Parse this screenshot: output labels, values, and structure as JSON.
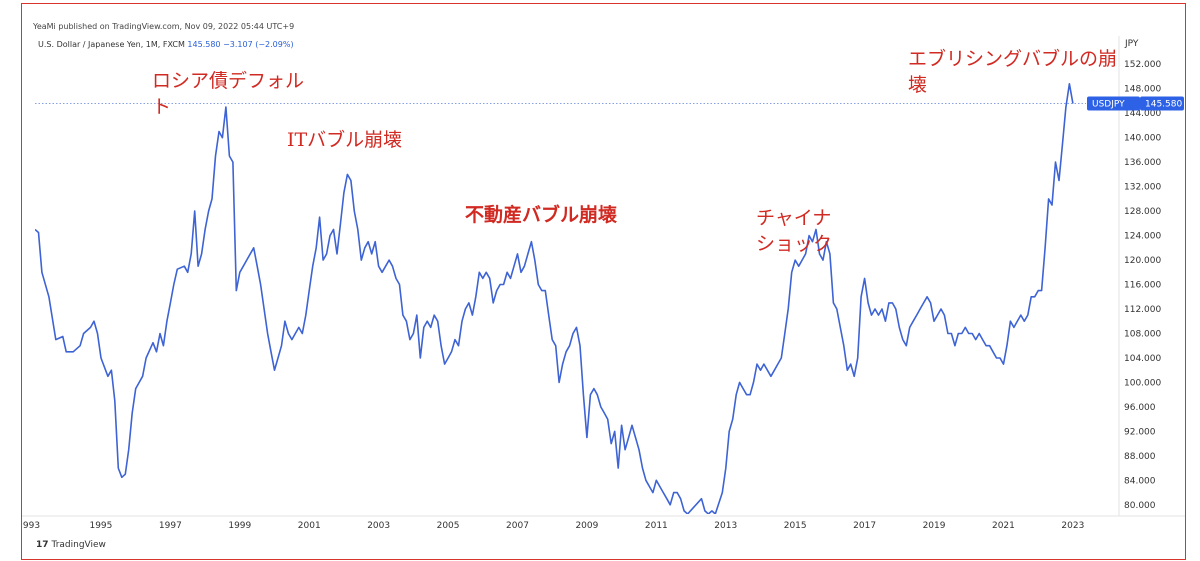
{
  "header": {
    "publisher": "YeaMi published on TradingView.com, Nov 09, 2022 05:44 UTC+9",
    "symbol_desc": "U.S. Dollar / Japanese Yen, 1M, FXCM",
    "last_price": "145.580",
    "change": "−3.107 (−2.09%)"
  },
  "footer": {
    "logo_mark": "17",
    "logo_text": "TradingView"
  },
  "annotations": {
    "russia_1": "ロシア債デフォル",
    "russia_2": "ト",
    "it_bubble": "ITバブル崩壊",
    "housing": "不動産バブル崩壊",
    "china_1": "チャイナ",
    "china_2": "ショック",
    "everything_1": "エブリシングバブルの崩",
    "everything_2": "壊"
  },
  "colors": {
    "line": "#3d63d4",
    "badge": "#2e62e6",
    "annotation": "#d02a22",
    "frame": "#d9342b"
  },
  "chart_data": {
    "type": "line",
    "currency_label": "JPY",
    "series_label": "USDJPY",
    "last_value": 145.58,
    "ylim": [
      78.5,
      154
    ],
    "y_ticks": [
      "152.000",
      "148.000",
      "144.000",
      "140.000",
      "136.000",
      "132.000",
      "128.000",
      "124.000",
      "120.000",
      "116.000",
      "112.000",
      "108.000",
      "104.000",
      "100.000",
      "96.000",
      "92.000",
      "88.000",
      "84.000",
      "80.000"
    ],
    "x_ticks": [
      "993",
      "1995",
      "1997",
      "1999",
      "2001",
      "2003",
      "2005",
      "2007",
      "2009",
      "2011",
      "2013",
      "2015",
      "2017",
      "2019",
      "2021",
      "2023"
    ],
    "xlim": [
      1993.1,
      2024.3
    ],
    "points": [
      [
        1993.1,
        125
      ],
      [
        1993.2,
        124.5
      ],
      [
        1993.3,
        118
      ],
      [
        1993.5,
        114
      ],
      [
        1993.7,
        107
      ],
      [
        1993.9,
        107.5
      ],
      [
        1994.0,
        105
      ],
      [
        1994.2,
        105
      ],
      [
        1994.4,
        106
      ],
      [
        1994.5,
        108
      ],
      [
        1994.7,
        109
      ],
      [
        1994.8,
        110
      ],
      [
        1994.9,
        108
      ],
      [
        1995.0,
        104
      ],
      [
        1995.2,
        101
      ],
      [
        1995.3,
        102
      ],
      [
        1995.4,
        97
      ],
      [
        1995.5,
        86
      ],
      [
        1995.6,
        84.5
      ],
      [
        1995.7,
        85
      ],
      [
        1995.8,
        89
      ],
      [
        1995.9,
        95
      ],
      [
        1996.0,
        99
      ],
      [
        1996.2,
        101
      ],
      [
        1996.3,
        104
      ],
      [
        1996.5,
        106.5
      ],
      [
        1996.6,
        105
      ],
      [
        1996.7,
        108
      ],
      [
        1996.8,
        106
      ],
      [
        1996.9,
        110
      ],
      [
        1997.0,
        113
      ],
      [
        1997.1,
        116
      ],
      [
        1997.2,
        118.5
      ],
      [
        1997.4,
        119
      ],
      [
        1997.5,
        118
      ],
      [
        1997.6,
        121
      ],
      [
        1997.7,
        128
      ],
      [
        1997.8,
        119
      ],
      [
        1997.9,
        121
      ],
      [
        1998.0,
        125
      ],
      [
        1998.1,
        128
      ],
      [
        1998.2,
        130
      ],
      [
        1998.3,
        137
      ],
      [
        1998.4,
        141
      ],
      [
        1998.5,
        140
      ],
      [
        1998.6,
        145
      ],
      [
        1998.7,
        137
      ],
      [
        1998.8,
        136
      ],
      [
        1998.9,
        115
      ],
      [
        1999.0,
        118
      ],
      [
        1999.1,
        119
      ],
      [
        1999.2,
        120
      ],
      [
        1999.4,
        122
      ],
      [
        1999.5,
        119
      ],
      [
        1999.6,
        116
      ],
      [
        1999.7,
        112
      ],
      [
        1999.8,
        108
      ],
      [
        1999.9,
        105
      ],
      [
        2000.0,
        102
      ],
      [
        2000.1,
        104
      ],
      [
        2000.2,
        106
      ],
      [
        2000.3,
        110
      ],
      [
        2000.4,
        108
      ],
      [
        2000.5,
        107
      ],
      [
        2000.6,
        108
      ],
      [
        2000.7,
        109
      ],
      [
        2000.8,
        108
      ],
      [
        2000.9,
        111
      ],
      [
        2001.0,
        115
      ],
      [
        2001.1,
        119
      ],
      [
        2001.2,
        122
      ],
      [
        2001.3,
        127
      ],
      [
        2001.4,
        120
      ],
      [
        2001.5,
        121
      ],
      [
        2001.6,
        124
      ],
      [
        2001.7,
        125
      ],
      [
        2001.8,
        121
      ],
      [
        2001.9,
        126
      ],
      [
        2002.0,
        131
      ],
      [
        2002.1,
        134
      ],
      [
        2002.2,
        133
      ],
      [
        2002.3,
        128
      ],
      [
        2002.4,
        125
      ],
      [
        2002.5,
        120
      ],
      [
        2002.6,
        122
      ],
      [
        2002.7,
        123
      ],
      [
        2002.8,
        121
      ],
      [
        2002.9,
        123
      ],
      [
        2003.0,
        119
      ],
      [
        2003.1,
        118
      ],
      [
        2003.2,
        119
      ],
      [
        2003.3,
        120
      ],
      [
        2003.4,
        119
      ],
      [
        2003.5,
        117
      ],
      [
        2003.6,
        116
      ],
      [
        2003.7,
        111
      ],
      [
        2003.8,
        110
      ],
      [
        2003.9,
        107
      ],
      [
        2004.0,
        108
      ],
      [
        2004.1,
        111
      ],
      [
        2004.2,
        104
      ],
      [
        2004.3,
        109
      ],
      [
        2004.4,
        110
      ],
      [
        2004.5,
        109
      ],
      [
        2004.6,
        111
      ],
      [
        2004.7,
        110
      ],
      [
        2004.8,
        106
      ],
      [
        2004.9,
        103
      ],
      [
        2005.0,
        104
      ],
      [
        2005.1,
        105
      ],
      [
        2005.2,
        107
      ],
      [
        2005.3,
        106
      ],
      [
        2005.4,
        110
      ],
      [
        2005.5,
        112
      ],
      [
        2005.6,
        113
      ],
      [
        2005.7,
        111
      ],
      [
        2005.8,
        114
      ],
      [
        2005.9,
        118
      ],
      [
        2006.0,
        117
      ],
      [
        2006.1,
        118
      ],
      [
        2006.2,
        117
      ],
      [
        2006.3,
        113
      ],
      [
        2006.4,
        115
      ],
      [
        2006.5,
        116
      ],
      [
        2006.6,
        116
      ],
      [
        2006.7,
        118
      ],
      [
        2006.8,
        117
      ],
      [
        2006.9,
        119
      ],
      [
        2007.0,
        121
      ],
      [
        2007.1,
        118
      ],
      [
        2007.2,
        119
      ],
      [
        2007.3,
        121
      ],
      [
        2007.4,
        123
      ],
      [
        2007.5,
        120
      ],
      [
        2007.6,
        116
      ],
      [
        2007.7,
        115
      ],
      [
        2007.8,
        115
      ],
      [
        2007.9,
        111
      ],
      [
        2008.0,
        107
      ],
      [
        2008.1,
        106
      ],
      [
        2008.2,
        100
      ],
      [
        2008.3,
        103
      ],
      [
        2008.4,
        105
      ],
      [
        2008.5,
        106
      ],
      [
        2008.6,
        108
      ],
      [
        2008.7,
        109
      ],
      [
        2008.8,
        106
      ],
      [
        2008.9,
        98
      ],
      [
        2009.0,
        91
      ],
      [
        2009.1,
        98
      ],
      [
        2009.2,
        99
      ],
      [
        2009.3,
        98
      ],
      [
        2009.4,
        96
      ],
      [
        2009.5,
        95
      ],
      [
        2009.6,
        94
      ],
      [
        2009.7,
        90
      ],
      [
        2009.8,
        92
      ],
      [
        2009.9,
        86
      ],
      [
        2010.0,
        93
      ],
      [
        2010.1,
        89
      ],
      [
        2010.2,
        91
      ],
      [
        2010.3,
        93
      ],
      [
        2010.4,
        91
      ],
      [
        2010.5,
        89
      ],
      [
        2010.6,
        86
      ],
      [
        2010.7,
        84
      ],
      [
        2010.8,
        83
      ],
      [
        2010.9,
        82
      ],
      [
        2011.0,
        84
      ],
      [
        2011.1,
        83
      ],
      [
        2011.2,
        82
      ],
      [
        2011.3,
        81
      ],
      [
        2011.4,
        80
      ],
      [
        2011.5,
        82
      ],
      [
        2011.6,
        82
      ],
      [
        2011.7,
        81
      ],
      [
        2011.8,
        79
      ],
      [
        2011.9,
        78.5
      ],
      [
        2012.3,
        81
      ],
      [
        2012.4,
        79
      ],
      [
        2012.5,
        78.5
      ],
      [
        2012.6,
        79
      ],
      [
        2012.7,
        78.5
      ],
      [
        2012.9,
        82
      ],
      [
        2013.0,
        86
      ],
      [
        2013.1,
        92
      ],
      [
        2013.2,
        94
      ],
      [
        2013.3,
        98
      ],
      [
        2013.4,
        100
      ],
      [
        2013.5,
        99
      ],
      [
        2013.6,
        98
      ],
      [
        2013.7,
        98
      ],
      [
        2013.8,
        100
      ],
      [
        2013.9,
        103
      ],
      [
        2014.0,
        102
      ],
      [
        2014.1,
        103
      ],
      [
        2014.2,
        102
      ],
      [
        2014.3,
        101
      ],
      [
        2014.4,
        102
      ],
      [
        2014.5,
        103
      ],
      [
        2014.6,
        104
      ],
      [
        2014.7,
        108
      ],
      [
        2014.8,
        112
      ],
      [
        2014.9,
        118
      ],
      [
        2015.0,
        120
      ],
      [
        2015.1,
        119
      ],
      [
        2015.2,
        120
      ],
      [
        2015.3,
        121
      ],
      [
        2015.4,
        124
      ],
      [
        2015.5,
        123
      ],
      [
        2015.6,
        125
      ],
      [
        2015.7,
        121
      ],
      [
        2015.8,
        120
      ],
      [
        2015.9,
        123
      ],
      [
        2016.0,
        121
      ],
      [
        2016.1,
        113
      ],
      [
        2016.2,
        112
      ],
      [
        2016.3,
        109
      ],
      [
        2016.4,
        106
      ],
      [
        2016.5,
        102
      ],
      [
        2016.6,
        103
      ],
      [
        2016.7,
        101
      ],
      [
        2016.8,
        104
      ],
      [
        2016.9,
        114
      ],
      [
        2017.0,
        117
      ],
      [
        2017.1,
        113
      ],
      [
        2017.2,
        111
      ],
      [
        2017.3,
        112
      ],
      [
        2017.4,
        111
      ],
      [
        2017.5,
        112
      ],
      [
        2017.6,
        110
      ],
      [
        2017.7,
        113
      ],
      [
        2017.8,
        113
      ],
      [
        2017.9,
        112
      ],
      [
        2018.0,
        109
      ],
      [
        2018.1,
        107
      ],
      [
        2018.2,
        106
      ],
      [
        2018.3,
        109
      ],
      [
        2018.4,
        110
      ],
      [
        2018.5,
        111
      ],
      [
        2018.6,
        112
      ],
      [
        2018.7,
        113
      ],
      [
        2018.8,
        114
      ],
      [
        2018.9,
        113
      ],
      [
        2019.0,
        110
      ],
      [
        2019.1,
        111
      ],
      [
        2019.2,
        112
      ],
      [
        2019.3,
        111
      ],
      [
        2019.4,
        108
      ],
      [
        2019.5,
        108
      ],
      [
        2019.6,
        106
      ],
      [
        2019.7,
        108
      ],
      [
        2019.8,
        108
      ],
      [
        2019.9,
        109
      ],
      [
        2020.0,
        108
      ],
      [
        2020.1,
        108
      ],
      [
        2020.2,
        107
      ],
      [
        2020.3,
        108
      ],
      [
        2020.4,
        107
      ],
      [
        2020.5,
        106
      ],
      [
        2020.6,
        106
      ],
      [
        2020.7,
        105
      ],
      [
        2020.8,
        104
      ],
      [
        2020.9,
        104
      ],
      [
        2021.0,
        103
      ],
      [
        2021.1,
        106
      ],
      [
        2021.2,
        110
      ],
      [
        2021.3,
        109
      ],
      [
        2021.4,
        110
      ],
      [
        2021.5,
        111
      ],
      [
        2021.6,
        110
      ],
      [
        2021.7,
        111
      ],
      [
        2021.8,
        114
      ],
      [
        2021.9,
        114
      ],
      [
        2022.0,
        115
      ],
      [
        2022.1,
        115
      ],
      [
        2022.2,
        122
      ],
      [
        2022.3,
        130
      ],
      [
        2022.4,
        129
      ],
      [
        2022.5,
        136
      ],
      [
        2022.6,
        133
      ],
      [
        2022.7,
        139
      ],
      [
        2022.8,
        145
      ],
      [
        2022.9,
        148.8
      ],
      [
        2023.0,
        145.58
      ]
    ]
  }
}
